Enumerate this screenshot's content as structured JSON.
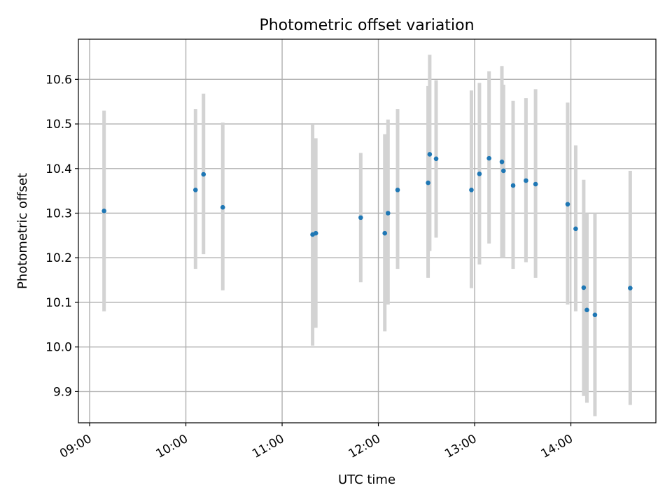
{
  "chart_data": {
    "type": "scatter",
    "title": "Photometric offset variation",
    "xlabel": "UTC time",
    "ylabel": "Photometric offset",
    "x_ticks": [
      "09:00",
      "10:00",
      "11:00",
      "12:00",
      "13:00",
      "14:00"
    ],
    "y_ticks": [
      "9.9",
      "10.0",
      "10.1",
      "10.2",
      "10.3",
      "10.4",
      "10.5",
      "10.6"
    ],
    "xlim": [
      "08:53",
      "14:53"
    ],
    "ylim": [
      9.83,
      10.69
    ],
    "grid": true,
    "marker_color": "#1f77b4",
    "errorbar_color": "#d3d3d3",
    "points": [
      {
        "t": "09:09",
        "y": 10.305,
        "lo": 10.08,
        "hi": 10.53
      },
      {
        "t": "10:06",
        "y": 10.352,
        "lo": 10.175,
        "hi": 10.533
      },
      {
        "t": "10:11",
        "y": 10.387,
        "lo": 10.208,
        "hi": 10.568
      },
      {
        "t": "10:23",
        "y": 10.313,
        "lo": 10.127,
        "hi": 10.503
      },
      {
        "t": "11:19",
        "y": 10.252,
        "lo": 10.003,
        "hi": 10.5
      },
      {
        "t": "11:21",
        "y": 10.255,
        "lo": 10.043,
        "hi": 10.468
      },
      {
        "t": "11:49",
        "y": 10.29,
        "lo": 10.145,
        "hi": 10.435
      },
      {
        "t": "12:04",
        "y": 10.255,
        "lo": 10.035,
        "hi": 10.477
      },
      {
        "t": "12:06",
        "y": 10.3,
        "lo": 10.095,
        "hi": 10.51
      },
      {
        "t": "12:12",
        "y": 10.352,
        "lo": 10.175,
        "hi": 10.533
      },
      {
        "t": "12:31",
        "y": 10.368,
        "lo": 10.155,
        "hi": 10.585
      },
      {
        "t": "12:32",
        "y": 10.432,
        "lo": 10.215,
        "hi": 10.655
      },
      {
        "t": "12:36",
        "y": 10.422,
        "lo": 10.245,
        "hi": 10.598
      },
      {
        "t": "12:58",
        "y": 10.352,
        "lo": 10.132,
        "hi": 10.575
      },
      {
        "t": "13:03",
        "y": 10.388,
        "lo": 10.185,
        "hi": 10.592
      },
      {
        "t": "13:09",
        "y": 10.423,
        "lo": 10.232,
        "hi": 10.618
      },
      {
        "t": "13:17",
        "y": 10.415,
        "lo": 10.2,
        "hi": 10.63
      },
      {
        "t": "13:18",
        "y": 10.395,
        "lo": 10.2,
        "hi": 10.588
      },
      {
        "t": "13:24",
        "y": 10.362,
        "lo": 10.175,
        "hi": 10.552
      },
      {
        "t": "13:32",
        "y": 10.373,
        "lo": 10.19,
        "hi": 10.558
      },
      {
        "t": "13:38",
        "y": 10.365,
        "lo": 10.155,
        "hi": 10.578
      },
      {
        "t": "13:58",
        "y": 10.32,
        "lo": 10.095,
        "hi": 10.548
      },
      {
        "t": "14:03",
        "y": 10.265,
        "lo": 10.08,
        "hi": 10.452
      },
      {
        "t": "14:08",
        "y": 10.133,
        "lo": 9.89,
        "hi": 10.375
      },
      {
        "t": "14:10",
        "y": 10.083,
        "lo": 9.875,
        "hi": 10.3
      },
      {
        "t": "14:15",
        "y": 10.072,
        "lo": 9.845,
        "hi": 10.3
      },
      {
        "t": "14:37",
        "y": 10.132,
        "lo": 9.87,
        "hi": 10.395
      }
    ]
  }
}
